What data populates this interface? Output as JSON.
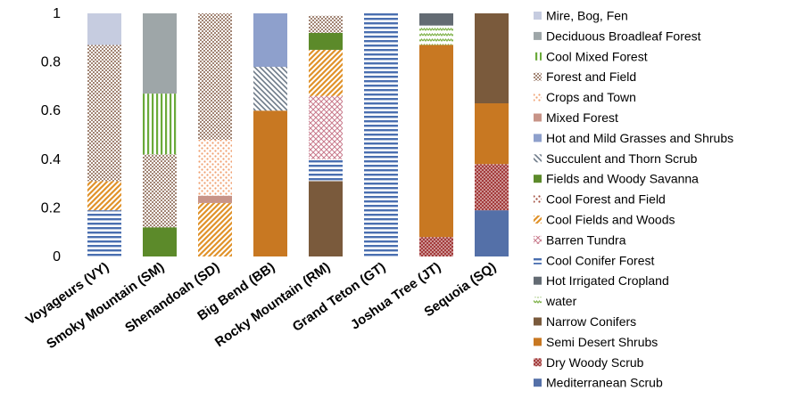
{
  "chart_data": {
    "type": "bar",
    "stacked": true,
    "title": "",
    "xlabel": "",
    "ylabel": "",
    "ylim": [
      0,
      1
    ],
    "yticks": [
      "0",
      "0.2",
      "0.4",
      "0.6",
      "0.8",
      "1"
    ],
    "grid": false,
    "legend_position": "right",
    "categories": [
      "Voyageurs (VY)",
      "Smoky Mountain (SM)",
      "Shenandoah (SD)",
      "Big Bend (BB)",
      "Rocky Mountain (RM)",
      "Grand Teton (GT)",
      "Joshua Tree (JT)",
      "Sequoia (SQ)"
    ],
    "series": [
      {
        "name": "Mediterranean Scrub",
        "color": "#5470a8",
        "pattern": "solid",
        "values": [
          0,
          0,
          0,
          0,
          0,
          0,
          0,
          0.19
        ]
      },
      {
        "name": "Dry Woody Scrub",
        "color": "#a33b3b",
        "pattern": "dots",
        "values": [
          0,
          0,
          0,
          0,
          0,
          0,
          0.08,
          0.19
        ]
      },
      {
        "name": "Semi Desert Shrubs",
        "color": "#c87822",
        "pattern": "solid",
        "values": [
          0,
          0,
          0,
          0.6,
          0,
          0,
          0.79,
          0.25
        ]
      },
      {
        "name": "Narrow Conifers",
        "color": "#7a5a3c",
        "pattern": "solid",
        "values": [
          0,
          0,
          0,
          0,
          0.31,
          0,
          0,
          0.37
        ]
      },
      {
        "name": "water",
        "color": "#7fb24a",
        "pattern": "zigzag",
        "values": [
          0,
          0,
          0,
          0,
          0,
          0,
          0.08,
          0
        ]
      },
      {
        "name": "Hot Irrigated Cropland",
        "color": "#636b73",
        "pattern": "solid",
        "values": [
          0,
          0,
          0,
          0,
          0,
          0,
          0.05,
          0
        ]
      },
      {
        "name": "Cool Conifer Forest",
        "color": "#4a6fb0",
        "pattern": "hlines",
        "values": [
          0.19,
          0,
          0,
          0,
          0.09,
          1.0,
          0,
          0
        ]
      },
      {
        "name": "Barren Tundra",
        "color": "#c87a8c",
        "pattern": "cross",
        "values": [
          0,
          0,
          0,
          0,
          0.26,
          0,
          0,
          0
        ]
      },
      {
        "name": "Cool Fields and Woods",
        "color": "#e0922a",
        "pattern": "diag",
        "values": [
          0.12,
          0,
          0.22,
          0,
          0.19,
          0,
          0,
          0
        ]
      },
      {
        "name": "Cool Forest and Field",
        "color": "#a04a3a",
        "pattern": "sparse",
        "values": [
          0,
          0,
          0,
          0,
          0,
          0,
          0,
          0
        ]
      },
      {
        "name": "Fields and Woody Savanna",
        "color": "#5c8a2a",
        "pattern": "solid",
        "values": [
          0,
          0.12,
          0,
          0,
          0.07,
          0,
          0,
          0
        ]
      },
      {
        "name": "Succulent and Thorn Scrub",
        "color": "#6d7a88",
        "pattern": "diag2",
        "values": [
          0,
          0,
          0,
          0.18,
          0,
          0,
          0,
          0
        ]
      },
      {
        "name": "Hot and Mild Grasses and Shrubs",
        "color": "#8ea0cc",
        "pattern": "solid",
        "values": [
          0,
          0,
          0,
          0.22,
          0,
          0,
          0,
          0
        ]
      },
      {
        "name": "Mixed Forest",
        "color": "#c89488",
        "pattern": "solid",
        "values": [
          0,
          0,
          0.03,
          0,
          0,
          0,
          0,
          0
        ]
      },
      {
        "name": "Crops and Town",
        "color": "#f0a070",
        "pattern": "sparse",
        "values": [
          0,
          0,
          0.23,
          0,
          0,
          0,
          0,
          0
        ]
      },
      {
        "name": "Forest and Field",
        "color": "#9a7a68",
        "pattern": "dense",
        "values": [
          0.56,
          0.3,
          0.52,
          0,
          0.07,
          0,
          0,
          0
        ]
      },
      {
        "name": "Cool Mixed Forest",
        "color": "#6aaa3a",
        "pattern": "vlines",
        "values": [
          0,
          0.25,
          0,
          0,
          0,
          0,
          0,
          0
        ]
      },
      {
        "name": "Deciduous Broadleaf Forest",
        "color": "#9ea6a8",
        "pattern": "solid",
        "values": [
          0,
          0.33,
          0,
          0,
          0,
          0,
          0,
          0
        ]
      },
      {
        "name": "Mire, Bog, Fen",
        "color": "#c6cce0",
        "pattern": "solid",
        "values": [
          0.13,
          0,
          0,
          0,
          0,
          0,
          0,
          0
        ]
      }
    ]
  }
}
